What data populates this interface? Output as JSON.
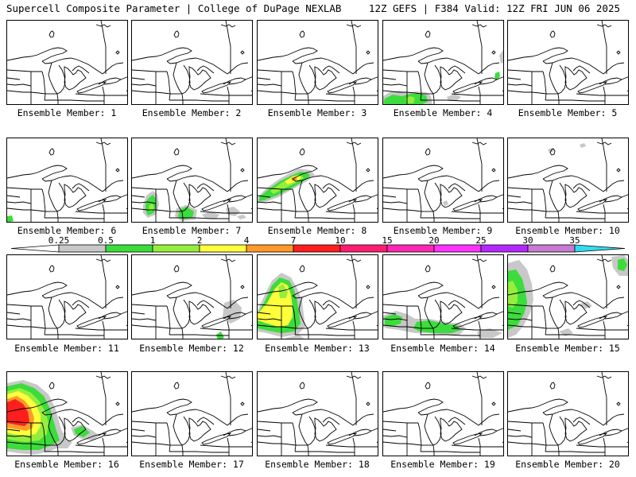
{
  "header": {
    "left": "Supercell Composite Parameter | College of DuPage NEXLAB",
    "right": "12Z GEFS | F384 Valid: 12Z FRI JUN 06 2025"
  },
  "member_label_prefix": "Ensemble Member: ",
  "members": [
    1,
    2,
    3,
    4,
    5,
    6,
    7,
    8,
    9,
    10,
    11,
    12,
    13,
    14,
    15,
    16,
    17,
    18,
    19,
    20
  ],
  "colorbar": {
    "ticks": [
      "0.25",
      "0.5",
      "1",
      "2",
      "4",
      "7",
      "10",
      "15",
      "20",
      "25",
      "30",
      "35"
    ],
    "colors": [
      "#c8c8c8",
      "#3cdc3c",
      "#96ee3c",
      "#ffff3c",
      "#ff9a28",
      "#ff1e1e",
      "#ff1e6e",
      "#ff28b4",
      "#ff32ff",
      "#b428ff",
      "#c87ad2",
      "#32dcf0"
    ]
  },
  "colors": {
    "low": "#c8c8c8",
    "green": "#3cdc3c",
    "light_green": "#96ee3c",
    "yellow": "#ffff3c",
    "orange": "#ff9a28",
    "red": "#ff1e1e"
  }
}
